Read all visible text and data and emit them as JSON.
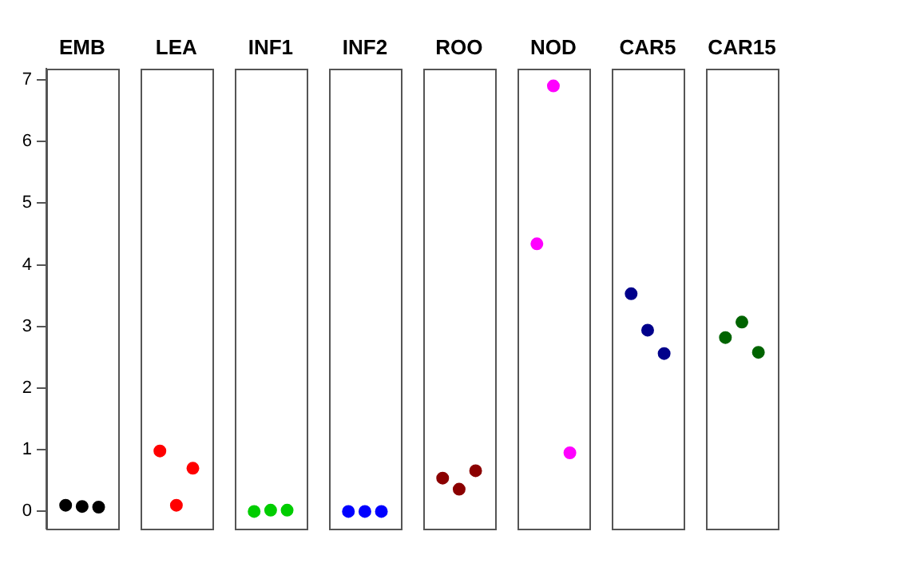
{
  "chart_data": {
    "type": "scatter",
    "categories": [
      "EMB",
      "LEA",
      "INF1",
      "INF2",
      "ROO",
      "NOD",
      "CAR5",
      "CAR15"
    ],
    "series": [
      {
        "colors": [
          "#000000",
          "#ff0000",
          "#00cd00",
          "#0000ff",
          "#8b0000",
          "#ff00ff",
          "#00008b",
          "#006400"
        ],
        "values": [
          0.1,
          0.98,
          0,
          0,
          0.54,
          4.34,
          3.53,
          2.82
        ]
      },
      {
        "colors": [
          "#000000",
          "#ff0000",
          "#00cd00",
          "#0000ff",
          "#8b0000",
          "#ff00ff",
          "#00008b",
          "#006400"
        ],
        "values": [
          0.08,
          0.1,
          0.02,
          0,
          0.36,
          6.9,
          2.94,
          3.07
        ]
      },
      {
        "colors": [
          "#000000",
          "#ff0000",
          "#00cd00",
          "#0000ff",
          "#8b0000",
          "#ff00ff",
          "#00008b",
          "#006400"
        ],
        "values": [
          0.07,
          0.7,
          0.02,
          0,
          0.66,
          0.95,
          2.56,
          2.58
        ]
      }
    ],
    "marker": "circle",
    "ylim": [
      -0.28,
      7.18
    ],
    "yticks": [
      0,
      1,
      2,
      3,
      4,
      5,
      6,
      7
    ],
    "grid": false,
    "legend": false
  }
}
